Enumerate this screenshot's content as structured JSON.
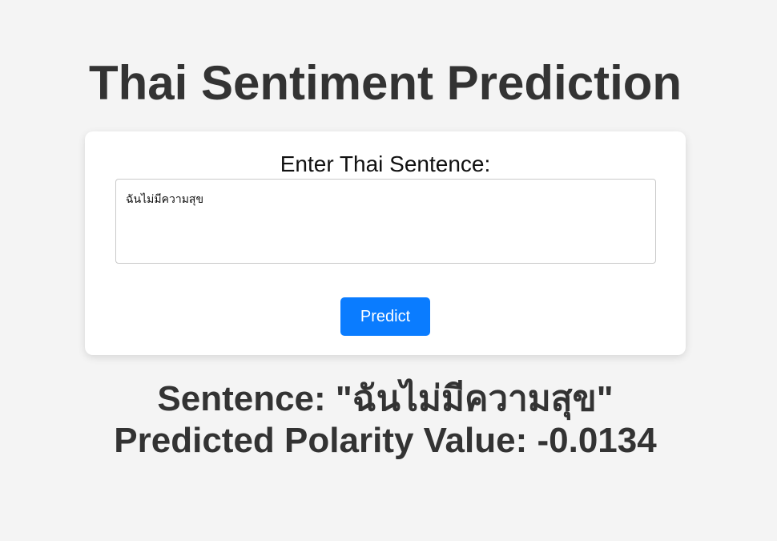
{
  "page": {
    "title": "Thai Sentiment Prediction"
  },
  "form": {
    "label": "Enter Thai Sentence:",
    "input_value": "ฉันไม่มีความสุข",
    "predict_label": "Predict"
  },
  "result": {
    "sentence_line": "Sentence: \"ฉันไม่มีความสุข\"",
    "polarity_line": "Predicted Polarity Value: -0.0134"
  },
  "colors": {
    "background": "#f4f4f4",
    "card": "#ffffff",
    "accent": "#0a7cff",
    "text": "#333333"
  }
}
